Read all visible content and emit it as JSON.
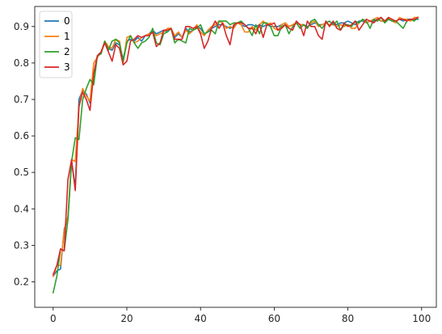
{
  "chart_data": {
    "type": "line",
    "title": "",
    "xlabel": "",
    "ylabel": "",
    "xlim": [
      -5,
      104
    ],
    "ylim": [
      0.13,
      0.955
    ],
    "xticks": [
      0,
      20,
      40,
      60,
      80,
      100
    ],
    "yticks": [
      0.2,
      0.3,
      0.4,
      0.5,
      0.6,
      0.7,
      0.8,
      0.9
    ],
    "grid": false,
    "legend": "top-left",
    "series": [
      {
        "name": "0",
        "color": "#1f77b4",
        "x": [
          0,
          1,
          2,
          3,
          4,
          5,
          6,
          7,
          8,
          9,
          10,
          11,
          12,
          13,
          14,
          15,
          16,
          17,
          18,
          19,
          20,
          21,
          22,
          23,
          24,
          25,
          26,
          27,
          28,
          29,
          30,
          31,
          32,
          33,
          34,
          35,
          36,
          37,
          38,
          39,
          40,
          41,
          42,
          43,
          44,
          45,
          46,
          47,
          48,
          49,
          50,
          51,
          52,
          53,
          54,
          55,
          56,
          57,
          58,
          59,
          60,
          61,
          62,
          63,
          64,
          65,
          66,
          67,
          68,
          69,
          70,
          71,
          72,
          73,
          74,
          75,
          76,
          77,
          78,
          79,
          80,
          81,
          82,
          83,
          84,
          85,
          86,
          87,
          88,
          89,
          90,
          91,
          92,
          93,
          94,
          95,
          96,
          97,
          98,
          99
        ],
        "y": [
          0.215,
          0.23,
          0.235,
          0.345,
          0.37,
          0.53,
          0.46,
          0.7,
          0.725,
          0.715,
          0.69,
          0.77,
          0.82,
          0.83,
          0.855,
          0.84,
          0.835,
          0.855,
          0.85,
          0.81,
          0.86,
          0.865,
          0.86,
          0.87,
          0.86,
          0.875,
          0.88,
          0.89,
          0.88,
          0.885,
          0.89,
          0.885,
          0.895,
          0.87,
          0.88,
          0.87,
          0.895,
          0.885,
          0.89,
          0.9,
          0.895,
          0.88,
          0.885,
          0.895,
          0.9,
          0.905,
          0.905,
          0.9,
          0.895,
          0.9,
          0.91,
          0.905,
          0.9,
          0.905,
          0.905,
          0.9,
          0.905,
          0.9,
          0.905,
          0.9,
          0.9,
          0.9,
          0.905,
          0.91,
          0.9,
          0.905,
          0.91,
          0.905,
          0.905,
          0.9,
          0.905,
          0.91,
          0.905,
          0.905,
          0.91,
          0.905,
          0.91,
          0.905,
          0.91,
          0.91,
          0.915,
          0.91,
          0.905,
          0.915,
          0.915,
          0.91,
          0.915,
          0.915,
          0.92,
          0.915,
          0.915,
          0.92,
          0.915,
          0.915,
          0.92,
          0.915,
          0.92,
          0.92,
          0.92,
          0.92
        ]
      },
      {
        "name": "1",
        "color": "#ff7f0e",
        "x": [
          0,
          1,
          2,
          3,
          4,
          5,
          6,
          7,
          8,
          9,
          10,
          11,
          12,
          13,
          14,
          15,
          16,
          17,
          18,
          19,
          20,
          21,
          22,
          23,
          24,
          25,
          26,
          27,
          28,
          29,
          30,
          31,
          32,
          33,
          34,
          35,
          36,
          37,
          38,
          39,
          40,
          41,
          42,
          43,
          44,
          45,
          46,
          47,
          48,
          49,
          50,
          51,
          52,
          53,
          54,
          55,
          56,
          57,
          58,
          59,
          60,
          61,
          62,
          63,
          64,
          65,
          66,
          67,
          68,
          69,
          70,
          71,
          72,
          73,
          74,
          75,
          76,
          77,
          78,
          79,
          80,
          81,
          82,
          83,
          84,
          85,
          86,
          87,
          88,
          89,
          90,
          91,
          92,
          93,
          94,
          95,
          96,
          97,
          98,
          99
        ],
        "y": [
          0.215,
          0.245,
          0.245,
          0.34,
          0.38,
          0.535,
          0.53,
          0.68,
          0.73,
          0.71,
          0.695,
          0.8,
          0.815,
          0.83,
          0.86,
          0.845,
          0.84,
          0.865,
          0.86,
          0.8,
          0.87,
          0.875,
          0.855,
          0.86,
          0.87,
          0.875,
          0.88,
          0.885,
          0.875,
          0.88,
          0.885,
          0.895,
          0.895,
          0.875,
          0.885,
          0.87,
          0.89,
          0.88,
          0.89,
          0.905,
          0.885,
          0.875,
          0.89,
          0.9,
          0.905,
          0.915,
          0.91,
          0.895,
          0.9,
          0.895,
          0.91,
          0.905,
          0.885,
          0.885,
          0.9,
          0.89,
          0.905,
          0.915,
          0.905,
          0.91,
          0.895,
          0.89,
          0.905,
          0.91,
          0.9,
          0.905,
          0.91,
          0.905,
          0.905,
          0.895,
          0.91,
          0.915,
          0.9,
          0.905,
          0.91,
          0.905,
          0.905,
          0.9,
          0.905,
          0.9,
          0.905,
          0.895,
          0.895,
          0.91,
          0.92,
          0.91,
          0.915,
          0.92,
          0.925,
          0.915,
          0.915,
          0.925,
          0.915,
          0.91,
          0.925,
          0.92,
          0.92,
          0.915,
          0.925,
          0.925
        ]
      },
      {
        "name": "2",
        "color": "#2ca02c",
        "x": [
          0,
          1,
          2,
          3,
          4,
          5,
          6,
          7,
          8,
          9,
          10,
          11,
          12,
          13,
          14,
          15,
          16,
          17,
          18,
          19,
          20,
          21,
          22,
          23,
          24,
          25,
          26,
          27,
          28,
          29,
          30,
          31,
          32,
          33,
          34,
          35,
          36,
          37,
          38,
          39,
          40,
          41,
          42,
          43,
          44,
          45,
          46,
          47,
          48,
          49,
          50,
          51,
          52,
          53,
          54,
          55,
          56,
          57,
          58,
          59,
          60,
          61,
          62,
          63,
          64,
          65,
          66,
          67,
          68,
          69,
          70,
          71,
          72,
          73,
          74,
          75,
          76,
          77,
          78,
          79,
          80,
          81,
          82,
          83,
          84,
          85,
          86,
          87,
          88,
          89,
          90,
          91,
          92,
          93,
          94,
          95,
          96,
          97,
          98,
          99
        ],
        "y": [
          0.17,
          0.215,
          0.29,
          0.285,
          0.37,
          0.53,
          0.595,
          0.59,
          0.7,
          0.73,
          0.755,
          0.74,
          0.82,
          0.825,
          0.86,
          0.835,
          0.86,
          0.865,
          0.855,
          0.805,
          0.855,
          0.875,
          0.855,
          0.84,
          0.855,
          0.86,
          0.87,
          0.895,
          0.855,
          0.85,
          0.88,
          0.885,
          0.895,
          0.855,
          0.865,
          0.86,
          0.855,
          0.895,
          0.89,
          0.895,
          0.905,
          0.88,
          0.885,
          0.89,
          0.88,
          0.915,
          0.915,
          0.915,
          0.905,
          0.91,
          0.91,
          0.915,
          0.905,
          0.895,
          0.875,
          0.905,
          0.88,
          0.91,
          0.91,
          0.9,
          0.875,
          0.875,
          0.9,
          0.905,
          0.88,
          0.9,
          0.91,
          0.895,
          0.905,
          0.895,
          0.915,
          0.92,
          0.905,
          0.895,
          0.91,
          0.915,
          0.905,
          0.915,
          0.89,
          0.905,
          0.905,
          0.9,
          0.915,
          0.91,
          0.92,
          0.915,
          0.895,
          0.92,
          0.915,
          0.925,
          0.91,
          0.92,
          0.915,
          0.915,
          0.905,
          0.895,
          0.915,
          0.92,
          0.915,
          0.925
        ]
      },
      {
        "name": "3",
        "color": "#d62728",
        "x": [
          0,
          1,
          2,
          3,
          4,
          5,
          6,
          7,
          8,
          9,
          10,
          11,
          12,
          13,
          14,
          15,
          16,
          17,
          18,
          19,
          20,
          21,
          22,
          23,
          24,
          25,
          26,
          27,
          28,
          29,
          30,
          31,
          32,
          33,
          34,
          35,
          36,
          37,
          38,
          39,
          40,
          41,
          42,
          43,
          44,
          45,
          46,
          47,
          48,
          49,
          50,
          51,
          52,
          53,
          54,
          55,
          56,
          57,
          58,
          59,
          60,
          61,
          62,
          63,
          64,
          65,
          66,
          67,
          68,
          69,
          70,
          71,
          72,
          73,
          74,
          75,
          76,
          77,
          78,
          79,
          80,
          81,
          82,
          83,
          84,
          85,
          86,
          87,
          88,
          89,
          90,
          91,
          92,
          93,
          94,
          95,
          96,
          97,
          98,
          99
        ],
        "y": [
          0.22,
          0.245,
          0.29,
          0.285,
          0.48,
          0.535,
          0.45,
          0.68,
          0.72,
          0.7,
          0.67,
          0.77,
          0.82,
          0.83,
          0.855,
          0.83,
          0.805,
          0.85,
          0.84,
          0.795,
          0.805,
          0.86,
          0.865,
          0.875,
          0.87,
          0.875,
          0.875,
          0.885,
          0.845,
          0.855,
          0.89,
          0.89,
          0.895,
          0.865,
          0.865,
          0.865,
          0.9,
          0.9,
          0.895,
          0.9,
          0.88,
          0.84,
          0.86,
          0.895,
          0.915,
          0.895,
          0.91,
          0.875,
          0.85,
          0.905,
          0.91,
          0.91,
          0.905,
          0.895,
          0.895,
          0.88,
          0.905,
          0.87,
          0.905,
          0.905,
          0.91,
          0.89,
          0.895,
          0.905,
          0.895,
          0.89,
          0.915,
          0.905,
          0.875,
          0.915,
          0.9,
          0.9,
          0.875,
          0.865,
          0.915,
          0.9,
          0.915,
          0.895,
          0.89,
          0.91,
          0.9,
          0.905,
          0.915,
          0.89,
          0.905,
          0.92,
          0.915,
          0.91,
          0.92,
          0.925,
          0.915,
          0.925,
          0.92,
          0.915,
          0.92,
          0.92,
          0.915,
          0.92,
          0.92,
          0.925
        ]
      }
    ]
  }
}
